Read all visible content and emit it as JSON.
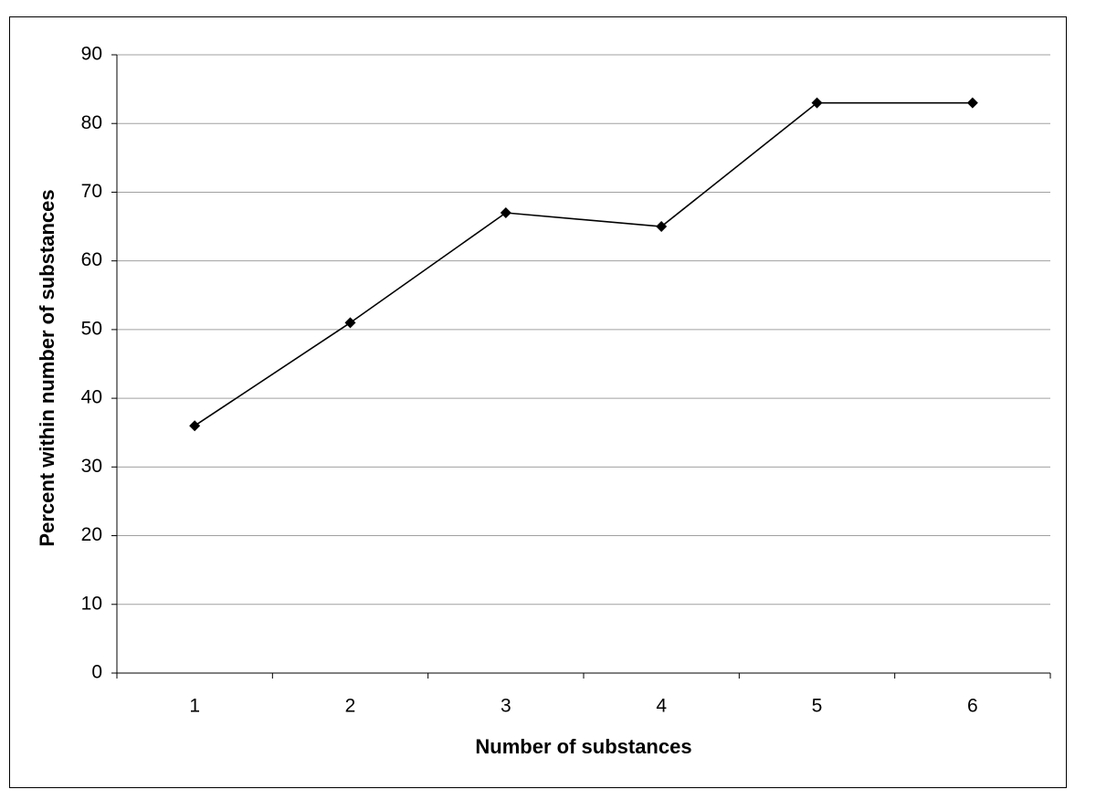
{
  "chart_data": {
    "type": "line",
    "x_label": "Number of substances",
    "y_label": "Percent within number of substances",
    "categories": [
      "1",
      "2",
      "3",
      "4",
      "5",
      "6"
    ],
    "values": [
      36,
      51,
      67,
      65,
      83,
      83
    ],
    "color": "#000000",
    "ylim": [
      0,
      90
    ],
    "yticks": [
      0,
      10,
      20,
      30,
      40,
      50,
      60,
      70,
      80,
      90
    ],
    "grid": true
  }
}
